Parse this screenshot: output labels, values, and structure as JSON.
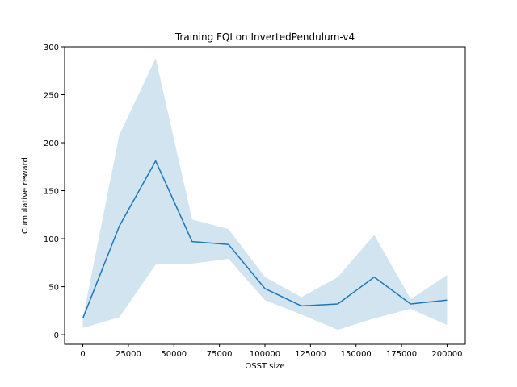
{
  "chart_data": {
    "type": "line",
    "title": "Training FQI on InvertedPendulum-v4",
    "xlabel": "OSST size",
    "ylabel": "Cumulative reward",
    "xlim": [
      -10000,
      210000
    ],
    "ylim": [
      -10,
      300
    ],
    "xticks": [
      0,
      25000,
      50000,
      75000,
      100000,
      125000,
      150000,
      175000,
      200000
    ],
    "yticks": [
      0,
      50,
      100,
      150,
      200,
      250,
      300
    ],
    "grid": false,
    "series": [
      {
        "x": [
          0,
          20000,
          40000,
          60000,
          80000,
          100000,
          120000,
          140000,
          160000,
          180000,
          200000
        ],
        "y": [
          17,
          113,
          181,
          97,
          94,
          48,
          30,
          32,
          60,
          32,
          36
        ],
        "lower": [
          7,
          18,
          73,
          74,
          79,
          36,
          21,
          5,
          17,
          27,
          10
        ],
        "upper": [
          17,
          208,
          288,
          120,
          110,
          60,
          39,
          60,
          104,
          37,
          62
        ],
        "color": "#1f77b4",
        "band_color": "#1f77b4"
      }
    ]
  }
}
